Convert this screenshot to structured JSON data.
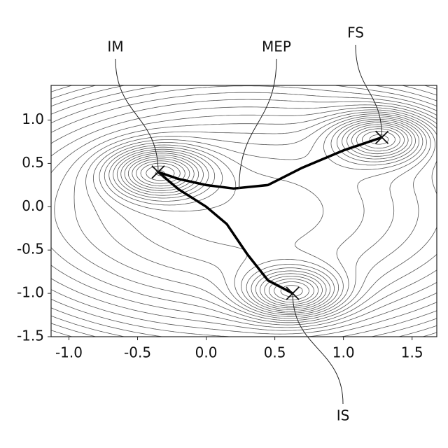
{
  "chart_data": {
    "type": "contour",
    "xlim": [
      -1.13,
      1.68
    ],
    "ylim": [
      -1.5,
      1.4
    ],
    "xticks": [
      {
        "value": -1.0,
        "label": "-1.0"
      },
      -0.5,
      {
        "value": 0.0,
        "label": "0.0"
      },
      0.5,
      {
        "value": 1.0,
        "label": "1.0"
      },
      1.5
    ],
    "yticks": [
      {
        "value": 1.0,
        "label": "1.0"
      },
      0.5,
      {
        "value": 0.0,
        "label": "0.0"
      },
      -0.5,
      {
        "value": -1.0,
        "label": "-1.0"
      },
      -1.5
    ],
    "series": [
      {
        "color": "#000000",
        "x": [
          -0.35,
          -0.2,
          0.0,
          0.2,
          0.45,
          0.7,
          1.0,
          1.28
        ],
        "y": [
          0.4,
          0.32,
          0.25,
          0.21,
          0.25,
          0.45,
          0.65,
          0.8
        ]
      },
      {
        "color": "#000000",
        "x": [
          -0.35,
          -0.2,
          0.0,
          0.15,
          0.3,
          0.45,
          0.63
        ],
        "y": [
          0.4,
          0.2,
          0.0,
          -0.2,
          -0.55,
          -0.85,
          -1.0
        ]
      }
    ],
    "annotations": [
      {
        "text": "IM",
        "x": -0.35,
        "y": 0.4
      },
      {
        "text": "MEP",
        "x": 0.24,
        "y": 0.22
      },
      {
        "text": "FS",
        "x": 1.28,
        "y": 0.8
      },
      {
        "text": "IS",
        "x": 0.63,
        "y": -1.0
      }
    ]
  }
}
